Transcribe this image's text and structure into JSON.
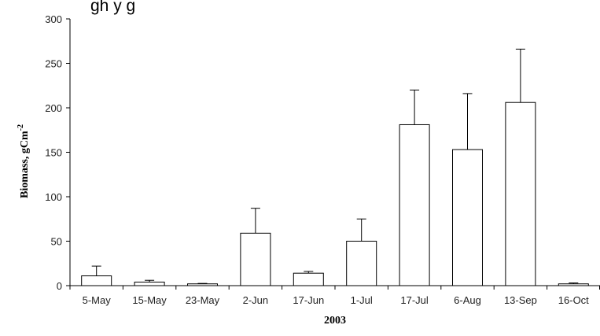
{
  "chart_data": {
    "type": "bar",
    "title_partial": "gh        y g",
    "categories": [
      "5-May",
      "15-May",
      "23-May",
      "2-Jun",
      "17-Jun",
      "1-Jul",
      "17-Jul",
      "6-Aug",
      "13-Sep",
      "16-Oct"
    ],
    "values": [
      11,
      4,
      2,
      59,
      14,
      50,
      181,
      153,
      206,
      2
    ],
    "errors": [
      11,
      2,
      0.5,
      28,
      2,
      25,
      39,
      63,
      60,
      1
    ],
    "xlabel": "2003",
    "ylabel": "Biomass, gCm",
    "ylabel_superscript": "-2",
    "ylim": [
      0,
      300
    ],
    "yticks": [
      0,
      50,
      100,
      150,
      200,
      250,
      300
    ],
    "grid": false,
    "bar_fill": "#ffffff",
    "bar_stroke": "#000000"
  }
}
